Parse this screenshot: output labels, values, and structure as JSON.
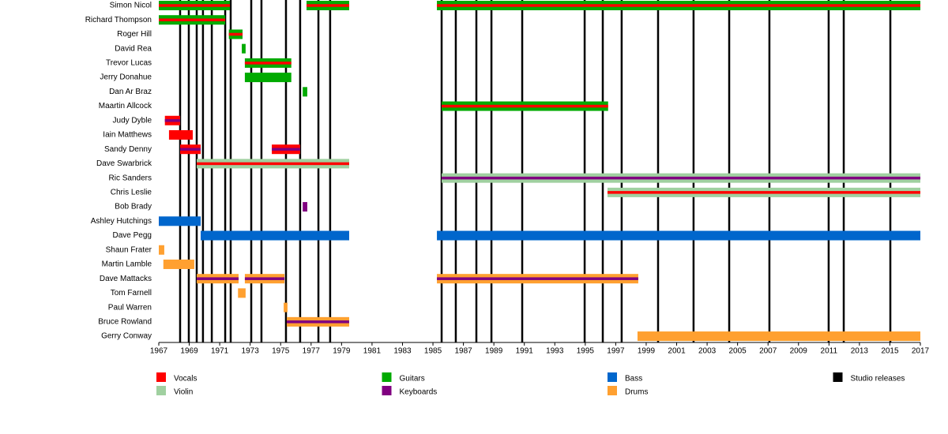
{
  "chart_data": {
    "type": "timeline",
    "xlim": [
      1967,
      2017
    ],
    "xticks": [
      1967,
      1969,
      1971,
      1973,
      1975,
      1977,
      1979,
      1981,
      1983,
      1985,
      1987,
      1989,
      1991,
      1993,
      1995,
      1997,
      1999,
      2001,
      2003,
      2005,
      2007,
      2009,
      2011,
      2013,
      2015,
      2017
    ],
    "members": [
      {
        "name": "Simon Nicol",
        "periods": [
          {
            "start": 1967.0,
            "end": 1971.67,
            "color": "#00aa00",
            "stripe": "#ff0000"
          },
          {
            "start": 1976.7,
            "end": 1979.5,
            "color": "#00aa00",
            "stripe": "#ff0000"
          },
          {
            "start": 1985.26,
            "end": 2017.0,
            "color": "#00aa00",
            "stripe": "#ff0000"
          }
        ]
      },
      {
        "name": "Richard Thompson",
        "periods": [
          {
            "start": 1967.0,
            "end": 1971.36,
            "color": "#00aa00",
            "stripe": "#ff0000"
          }
        ]
      },
      {
        "name": "Roger Hill",
        "periods": [
          {
            "start": 1971.6,
            "end": 1972.5,
            "color": "#00aa00",
            "stripe": "#ff0000"
          }
        ]
      },
      {
        "name": "David Rea",
        "periods": [
          {
            "start": 1972.45,
            "end": 1972.7,
            "color": "#00aa00"
          }
        ]
      },
      {
        "name": "Trevor Lucas",
        "periods": [
          {
            "start": 1972.65,
            "end": 1975.7,
            "color": "#00aa00",
            "stripe": "#ff0000"
          }
        ]
      },
      {
        "name": "Jerry Donahue",
        "periods": [
          {
            "start": 1972.65,
            "end": 1975.7,
            "color": "#00aa00"
          }
        ]
      },
      {
        "name": "Dan Ar Braz",
        "periods": [
          {
            "start": 1976.45,
            "end": 1976.75,
            "color": "#00aa00"
          }
        ]
      },
      {
        "name": "Maartin Allcock",
        "periods": [
          {
            "start": 1985.57,
            "end": 1996.5,
            "color": "#00aa00",
            "stripe": "#ff0000"
          }
        ]
      },
      {
        "name": "Judy Dyble",
        "periods": [
          {
            "start": 1967.4,
            "end": 1968.4,
            "color": "#ff0000",
            "stripe": "#800080"
          }
        ]
      },
      {
        "name": "Iain Matthews",
        "periods": [
          {
            "start": 1967.67,
            "end": 1969.23,
            "color": "#ff0000"
          }
        ]
      },
      {
        "name": "Sandy Denny",
        "periods": [
          {
            "start": 1968.4,
            "end": 1969.75,
            "color": "#ff0000",
            "stripe": "#800080"
          },
          {
            "start": 1974.42,
            "end": 1976.28,
            "color": "#ff0000",
            "stripe": "#800080"
          }
        ]
      },
      {
        "name": "Dave Swarbrick",
        "periods": [
          {
            "start": 1969.49,
            "end": 1979.5,
            "color": "#a0d0a0",
            "stripe": "#ff0000"
          }
        ]
      },
      {
        "name": "Ric Sanders",
        "periods": [
          {
            "start": 1985.57,
            "end": 2017.0,
            "color": "#a0d0a0",
            "stripe": "#800080"
          }
        ]
      },
      {
        "name": "Chris Leslie",
        "periods": [
          {
            "start": 1996.46,
            "end": 2017.0,
            "color": "#a0d0a0",
            "stripe": "#ff0000"
          }
        ]
      },
      {
        "name": "Bob Brady",
        "periods": [
          {
            "start": 1976.45,
            "end": 1976.75,
            "color": "#800080"
          }
        ]
      },
      {
        "name": "Ashley Hutchings",
        "periods": [
          {
            "start": 1967.0,
            "end": 1969.75,
            "color": "#0066cc"
          }
        ]
      },
      {
        "name": "Dave Pegg",
        "periods": [
          {
            "start": 1969.75,
            "end": 1979.5,
            "color": "#0066cc"
          },
          {
            "start": 1985.26,
            "end": 2017.0,
            "color": "#0066cc"
          }
        ]
      },
      {
        "name": "Shaun Frater",
        "periods": [
          {
            "start": 1967.0,
            "end": 1967.36,
            "color": "#ffa030"
          }
        ]
      },
      {
        "name": "Martin Lamble",
        "periods": [
          {
            "start": 1967.3,
            "end": 1969.33,
            "color": "#ffa030"
          }
        ]
      },
      {
        "name": "Dave Mattacks",
        "periods": [
          {
            "start": 1969.49,
            "end": 1972.24,
            "color": "#ffa030",
            "stripe": "#800080"
          },
          {
            "start": 1972.65,
            "end": 1975.25,
            "color": "#ffa030",
            "stripe": "#800080"
          },
          {
            "start": 1985.26,
            "end": 1998.48,
            "color": "#ffa030",
            "stripe": "#800080"
          }
        ]
      },
      {
        "name": "Tom Farnell",
        "periods": [
          {
            "start": 1972.2,
            "end": 1972.7,
            "color": "#ffa030"
          }
        ]
      },
      {
        "name": "Paul Warren",
        "periods": [
          {
            "start": 1975.2,
            "end": 1975.45,
            "color": "#ffa030"
          }
        ]
      },
      {
        "name": "Bruce Rowland",
        "periods": [
          {
            "start": 1975.4,
            "end": 1979.5,
            "color": "#ffa030",
            "stripe": "#800080"
          }
        ]
      },
      {
        "name": "Gerry Conway",
        "periods": [
          {
            "start": 1998.43,
            "end": 2017.0,
            "color": "#ffa030"
          }
        ]
      }
    ],
    "releases": [
      1968.4,
      1968.97,
      1969.49,
      1969.9,
      1970.48,
      1971.36,
      1971.72,
      1973.07,
      1973.74,
      1975.35,
      1976.28,
      1977.48,
      1978.25,
      1985.57,
      1986.5,
      1987.85,
      1988.84,
      1990.86,
      1994.96,
      1996.15,
      1997.39,
      1999.78,
      2002.11,
      2004.45,
      2007.09,
      2010.98,
      2011.97,
      2015.03
    ],
    "release_color": "#000000",
    "legend": [
      {
        "name": "Vocals",
        "color": "#ff0000"
      },
      {
        "name": "Violin",
        "color": "#a0d0a0"
      },
      {
        "name": "Guitars",
        "color": "#00aa00"
      },
      {
        "name": "Keyboards",
        "color": "#800080"
      },
      {
        "name": "Bass",
        "color": "#0066cc"
      },
      {
        "name": "Drums",
        "color": "#ffa030"
      },
      {
        "name": "Studio releases",
        "color": "#000000"
      }
    ]
  }
}
